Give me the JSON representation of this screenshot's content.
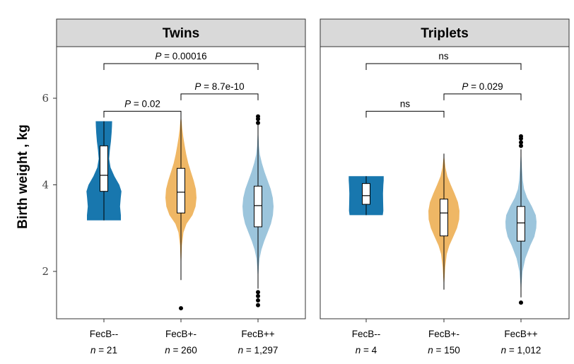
{
  "chart_data": {
    "type": "violin",
    "ylabel": "Birth weight , kg",
    "ylim": [
      1.0,
      7.3
    ],
    "yticks": [
      2,
      4,
      6
    ],
    "grid": false,
    "legend": "none",
    "colors": {
      "FecB--": "#1877ae",
      "FecB+-": "#efb765",
      "FecB++": "#9cc5dc"
    },
    "panels": [
      {
        "title": "Twins",
        "groups": [
          {
            "category": "FecB--",
            "n_label": "n = 21",
            "n_prefix": "n",
            "n_value": "= 21",
            "min": 3.18,
            "q1": 3.85,
            "median": 4.22,
            "q3": 4.9,
            "max": 5.47,
            "violin_width": 0.45,
            "outliers": [],
            "density": [
              [
                3.18,
                0.97
              ],
              [
                3.3,
                0.97
              ],
              [
                3.5,
                0.92
              ],
              [
                3.7,
                0.96
              ],
              [
                3.85,
                1.0
              ],
              [
                4.0,
                0.88
              ],
              [
                4.2,
                0.6
              ],
              [
                4.4,
                0.38
              ],
              [
                4.6,
                0.3
              ],
              [
                4.8,
                0.34
              ],
              [
                5.0,
                0.4
              ],
              [
                5.2,
                0.44
              ],
              [
                5.35,
                0.46
              ],
              [
                5.47,
                0.47
              ]
            ]
          },
          {
            "category": "FecB+-",
            "n_label": "n = 260",
            "n_prefix": "n",
            "n_value": "= 260",
            "min": 1.8,
            "q1": 3.35,
            "median": 3.83,
            "q3": 4.38,
            "max": 5.6,
            "violin_width": 0.4,
            "outliers": [
              1.15
            ],
            "density": [
              [
                1.8,
                0.0
              ],
              [
                2.2,
                0.02
              ],
              [
                2.6,
                0.06
              ],
              [
                2.9,
                0.16
              ],
              [
                3.1,
                0.36
              ],
              [
                3.3,
                0.74
              ],
              [
                3.5,
                0.94
              ],
              [
                3.7,
                1.0
              ],
              [
                3.9,
                0.96
              ],
              [
                4.1,
                0.82
              ],
              [
                4.3,
                0.64
              ],
              [
                4.5,
                0.47
              ],
              [
                4.7,
                0.34
              ],
              [
                4.9,
                0.24
              ],
              [
                5.1,
                0.15
              ],
              [
                5.3,
                0.08
              ],
              [
                5.5,
                0.03
              ],
              [
                5.6,
                0.0
              ]
            ]
          },
          {
            "category": "FecB++",
            "n_label": "n = 1,297",
            "n_prefix": "n",
            "n_value": "= 1,297",
            "min": 1.6,
            "q1": 3.03,
            "median": 3.52,
            "q3": 3.97,
            "max": 5.38,
            "violin_width": 0.4,
            "outliers": [
              1.22,
              1.33,
              1.43,
              1.52,
              5.43,
              5.52,
              5.58
            ],
            "density": [
              [
                1.62,
                0.0
              ],
              [
                1.9,
                0.02
              ],
              [
                2.1,
                0.05
              ],
              [
                2.3,
                0.1
              ],
              [
                2.5,
                0.22
              ],
              [
                2.7,
                0.4
              ],
              [
                2.9,
                0.62
              ],
              [
                3.1,
                0.83
              ],
              [
                3.3,
                0.96
              ],
              [
                3.5,
                1.0
              ],
              [
                3.7,
                0.95
              ],
              [
                3.9,
                0.82
              ],
              [
                4.1,
                0.62
              ],
              [
                4.3,
                0.42
              ],
              [
                4.5,
                0.25
              ],
              [
                4.7,
                0.12
              ],
              [
                4.9,
                0.06
              ],
              [
                5.1,
                0.03
              ],
              [
                5.3,
                0.0
              ]
            ]
          }
        ],
        "comparisons": [
          {
            "from": "FecB--",
            "to": "FecB+-",
            "label_prefix": "P",
            "label_value": "= 0.02",
            "y": 5.7
          },
          {
            "from": "FecB+-",
            "to": "FecB++",
            "label_prefix": "P",
            "label_value": "= 8.7e-10",
            "y": 6.1
          },
          {
            "from": "FecB--",
            "to": "FecB++",
            "label_prefix": "P",
            "label_value": "= 0.00016",
            "y": 6.8
          }
        ]
      },
      {
        "title": "Triplets",
        "groups": [
          {
            "category": "FecB--",
            "n_label": "n = 4",
            "n_prefix": "n",
            "n_value": "= 4",
            "min": 3.3,
            "q1": 3.55,
            "median": 3.75,
            "q3": 4.03,
            "max": 4.2,
            "violin_width": 0.45,
            "outliers": [],
            "density": [
              [
                3.3,
                0.95
              ],
              [
                3.4,
                0.98
              ],
              [
                3.6,
                0.97
              ],
              [
                3.8,
                0.96
              ],
              [
                4.0,
                0.98
              ],
              [
                4.1,
                1.0
              ],
              [
                4.2,
                1.0
              ]
            ]
          },
          {
            "category": "FecB+-",
            "n_label": "n = 150",
            "n_prefix": "n",
            "n_value": "= 150",
            "min": 1.58,
            "q1": 2.82,
            "median": 3.35,
            "q3": 3.67,
            "max": 4.72,
            "violin_width": 0.4,
            "outliers": [],
            "density": [
              [
                1.58,
                0.0
              ],
              [
                1.8,
                0.03
              ],
              [
                2.1,
                0.08
              ],
              [
                2.4,
                0.18
              ],
              [
                2.6,
                0.35
              ],
              [
                2.8,
                0.6
              ],
              [
                3.0,
                0.84
              ],
              [
                3.2,
                0.98
              ],
              [
                3.4,
                1.0
              ],
              [
                3.6,
                0.9
              ],
              [
                3.8,
                0.68
              ],
              [
                4.0,
                0.44
              ],
              [
                4.2,
                0.22
              ],
              [
                4.4,
                0.1
              ],
              [
                4.6,
                0.03
              ],
              [
                4.72,
                0.0
              ]
            ]
          },
          {
            "category": "FecB++",
            "n_label": "n = 1,012",
            "n_prefix": "n",
            "n_value": "= 1,012",
            "min": 1.4,
            "q1": 2.7,
            "median": 3.12,
            "q3": 3.5,
            "max": 4.82,
            "violin_width": 0.4,
            "outliers": [
              1.28,
              4.9,
              4.98,
              5.07,
              5.12
            ],
            "density": [
              [
                1.4,
                0.0
              ],
              [
                1.7,
                0.03
              ],
              [
                2.0,
                0.1
              ],
              [
                2.3,
                0.28
              ],
              [
                2.6,
                0.6
              ],
              [
                2.8,
                0.86
              ],
              [
                3.0,
                0.98
              ],
              [
                3.15,
                1.0
              ],
              [
                3.3,
                0.95
              ],
              [
                3.5,
                0.7
              ],
              [
                3.7,
                0.4
              ],
              [
                3.9,
                0.2
              ],
              [
                4.1,
                0.12
              ],
              [
                4.4,
                0.06
              ],
              [
                4.7,
                0.02
              ],
              [
                4.82,
                0.0
              ]
            ]
          }
        ],
        "comparisons": [
          {
            "from": "FecB--",
            "to": "FecB+-",
            "label_prefix": "",
            "label_value": "ns",
            "y": 5.7
          },
          {
            "from": "FecB+-",
            "to": "FecB++",
            "label_prefix": "P",
            "label_value": "= 0.029",
            "y": 6.1
          },
          {
            "from": "FecB--",
            "to": "FecB++",
            "label_prefix": "",
            "label_value": "ns",
            "y": 6.8
          }
        ]
      }
    ]
  }
}
